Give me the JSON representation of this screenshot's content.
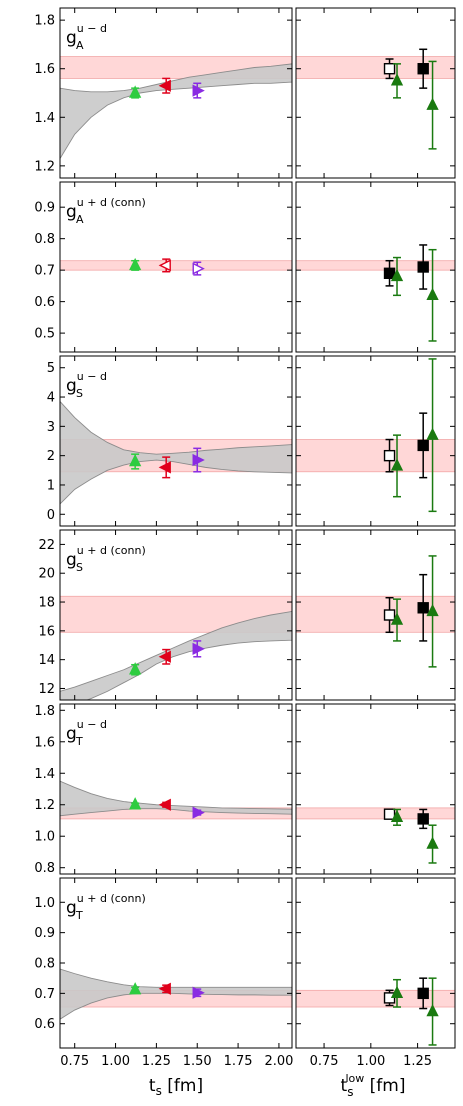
{
  "figure": {
    "left_xlabel": {
      "main": "t",
      "sub": "s",
      "unit": " [fm]"
    },
    "right_xlabel": {
      "main": "t",
      "sub": "s",
      "sup": "low",
      "unit": " [fm]"
    }
  },
  "chart_data": [
    {
      "type": "scatter",
      "label": {
        "main": "g",
        "sub": "A",
        "sup": "u − d"
      },
      "ylim": [
        1.15,
        1.85
      ],
      "yticks": [
        1.2,
        1.4,
        1.6,
        1.8
      ],
      "ytick_labels": [
        "1.2",
        "1.4",
        "1.6",
        "1.8"
      ],
      "band": [
        1.56,
        1.65
      ],
      "left": {
        "xlim": [
          0.66,
          2.08
        ],
        "xticks": [
          0.75,
          1.0,
          1.25,
          1.5,
          1.75,
          2.0
        ],
        "xtick_labels": [
          "0.75",
          "1.00",
          "1.25",
          "1.50",
          "1.75",
          "2.00"
        ],
        "fit_band": {
          "x": [
            0.66,
            0.75,
            0.85,
            0.95,
            1.05,
            1.15,
            1.25,
            1.35,
            1.45,
            1.55,
            1.65,
            1.75,
            1.85,
            1.95,
            2.08
          ],
          "upper": [
            1.52,
            1.51,
            1.505,
            1.505,
            1.51,
            1.52,
            1.535,
            1.55,
            1.565,
            1.575,
            1.585,
            1.595,
            1.605,
            1.61,
            1.62
          ],
          "lower": [
            1.23,
            1.33,
            1.4,
            1.45,
            1.48,
            1.5,
            1.51,
            1.515,
            1.52,
            1.525,
            1.53,
            1.535,
            1.54,
            1.54,
            1.545
          ]
        },
        "points": [
          {
            "x": 1.12,
            "y": 1.5,
            "err": 0.02,
            "marker": "triangle-up",
            "color": "#2ecc40",
            "filled": true
          },
          {
            "x": 1.31,
            "y": 1.53,
            "err": 0.03,
            "marker": "triangle-left",
            "color": "#e0001b",
            "filled": true
          },
          {
            "x": 1.5,
            "y": 1.51,
            "err": 0.03,
            "marker": "triangle-right",
            "color": "#8a2be2",
            "filled": true
          }
        ]
      },
      "right": {
        "xlim": [
          0.6,
          1.45
        ],
        "xticks": [
          0.75,
          1.0,
          1.25
        ],
        "xtick_labels": [
          "0.75",
          "1.00",
          "1.25"
        ],
        "points": [
          {
            "x": 1.1,
            "y": 1.6,
            "err": 0.04,
            "marker": "square",
            "color": "#000000",
            "filled": false
          },
          {
            "x": 1.14,
            "y": 1.55,
            "err": 0.07,
            "marker": "triangle-up",
            "color": "#1a7a10",
            "filled": true
          },
          {
            "x": 1.28,
            "y": 1.6,
            "err": 0.08,
            "marker": "square",
            "color": "#000000",
            "filled": true
          },
          {
            "x": 1.33,
            "y": 1.45,
            "err": 0.18,
            "marker": "triangle-up",
            "color": "#1a7a10",
            "filled": true
          }
        ]
      }
    },
    {
      "type": "scatter",
      "label": {
        "main": "g",
        "sub": "A",
        "sup": "u + d (conn)"
      },
      "ylim": [
        0.44,
        0.98
      ],
      "yticks": [
        0.5,
        0.6,
        0.7,
        0.8,
        0.9
      ],
      "ytick_labels": [
        "0.5",
        "0.6",
        "0.7",
        "0.8",
        "0.9"
      ],
      "band": [
        0.7,
        0.73
      ],
      "left": {
        "xlim": [
          0.66,
          2.08
        ],
        "xticks": [
          0.75,
          1.0,
          1.25,
          1.5,
          1.75,
          2.0
        ],
        "xtick_labels": [
          "0.75",
          "1.00",
          "1.25",
          "1.50",
          "1.75",
          "2.00"
        ],
        "fit_band": null,
        "points": [
          {
            "x": 1.12,
            "y": 0.715,
            "err": 0.015,
            "marker": "triangle-up",
            "color": "#2ecc40",
            "filled": true
          },
          {
            "x": 1.31,
            "y": 0.715,
            "err": 0.02,
            "marker": "triangle-left",
            "color": "#e0001b",
            "filled": false
          },
          {
            "x": 1.5,
            "y": 0.705,
            "err": 0.02,
            "marker": "triangle-right",
            "color": "#8a2be2",
            "filled": false
          }
        ]
      },
      "right": {
        "xlim": [
          0.6,
          1.45
        ],
        "xticks": [
          0.75,
          1.0,
          1.25
        ],
        "xtick_labels": [
          "0.75",
          "1.00",
          "1.25"
        ],
        "points": [
          {
            "x": 1.1,
            "y": 0.69,
            "err": 0.04,
            "marker": "square",
            "color": "#000000",
            "filled": true
          },
          {
            "x": 1.14,
            "y": 0.68,
            "err": 0.06,
            "marker": "triangle-up",
            "color": "#1a7a10",
            "filled": true
          },
          {
            "x": 1.28,
            "y": 0.71,
            "err": 0.07,
            "marker": "square",
            "color": "#000000",
            "filled": true
          },
          {
            "x": 1.33,
            "y": 0.62,
            "err": 0.145,
            "marker": "triangle-up",
            "color": "#1a7a10",
            "filled": true
          }
        ]
      }
    },
    {
      "type": "scatter",
      "label": {
        "main": "g",
        "sub": "S",
        "sup": "u − d"
      },
      "ylim": [
        -0.4,
        5.4
      ],
      "yticks": [
        0,
        1,
        2,
        3,
        4,
        5
      ],
      "ytick_labels": [
        "0",
        "1",
        "2",
        "3",
        "4",
        "5"
      ],
      "band": [
        1.45,
        2.55
      ],
      "left": {
        "xlim": [
          0.66,
          2.08
        ],
        "xticks": [
          0.75,
          1.0,
          1.25,
          1.5,
          1.75,
          2.0
        ],
        "xtick_labels": [
          "0.75",
          "1.00",
          "1.25",
          "1.50",
          "1.75",
          "2.00"
        ],
        "fit_band": {
          "x": [
            0.66,
            0.75,
            0.85,
            0.95,
            1.05,
            1.15,
            1.25,
            1.35,
            1.45,
            1.55,
            1.65,
            1.75,
            1.85,
            1.95,
            2.08
          ],
          "upper": [
            3.85,
            3.3,
            2.8,
            2.45,
            2.2,
            2.1,
            2.05,
            2.08,
            2.12,
            2.18,
            2.22,
            2.27,
            2.3,
            2.33,
            2.38
          ],
          "lower": [
            0.35,
            0.85,
            1.2,
            1.5,
            1.68,
            1.8,
            1.85,
            1.8,
            1.7,
            1.6,
            1.53,
            1.48,
            1.45,
            1.43,
            1.41
          ]
        },
        "points": [
          {
            "x": 1.12,
            "y": 1.8,
            "err": 0.25,
            "marker": "triangle-up",
            "color": "#2ecc40",
            "filled": true
          },
          {
            "x": 1.31,
            "y": 1.6,
            "err": 0.35,
            "marker": "triangle-left",
            "color": "#e0001b",
            "filled": true
          },
          {
            "x": 1.5,
            "y": 1.85,
            "err": 0.4,
            "marker": "triangle-right",
            "color": "#8a2be2",
            "filled": true
          }
        ]
      },
      "right": {
        "xlim": [
          0.6,
          1.45
        ],
        "xticks": [
          0.75,
          1.0,
          1.25
        ],
        "xtick_labels": [
          "0.75",
          "1.00",
          "1.25"
        ],
        "points": [
          {
            "x": 1.1,
            "y": 2.0,
            "err": 0.55,
            "marker": "square",
            "color": "#000000",
            "filled": false
          },
          {
            "x": 1.14,
            "y": 1.65,
            "err": 1.05,
            "marker": "triangle-up",
            "color": "#1a7a10",
            "filled": true
          },
          {
            "x": 1.28,
            "y": 2.35,
            "err": 1.1,
            "marker": "square",
            "color": "#000000",
            "filled": true
          },
          {
            "x": 1.33,
            "y": 2.7,
            "err": 2.6,
            "marker": "triangle-up",
            "color": "#1a7a10",
            "filled": true
          }
        ]
      }
    },
    {
      "type": "scatter",
      "label": {
        "main": "g",
        "sub": "S",
        "sup": "u + d (conn)"
      },
      "ylim": [
        11.2,
        23.0
      ],
      "yticks": [
        12,
        14,
        16,
        18,
        20,
        22
      ],
      "ytick_labels": [
        "12",
        "14",
        "16",
        "18",
        "20",
        "22"
      ],
      "band": [
        15.9,
        18.4
      ],
      "left": {
        "xlim": [
          0.66,
          2.08
        ],
        "xticks": [
          0.75,
          1.0,
          1.25,
          1.5,
          1.75,
          2.0
        ],
        "xtick_labels": [
          "0.75",
          "1.00",
          "1.25",
          "1.50",
          "1.75",
          "2.00"
        ],
        "fit_band": {
          "x": [
            0.66,
            0.75,
            0.85,
            0.95,
            1.05,
            1.15,
            1.25,
            1.35,
            1.45,
            1.55,
            1.65,
            1.75,
            1.85,
            1.95,
            2.08
          ],
          "upper": [
            11.8,
            12.1,
            12.5,
            12.9,
            13.3,
            13.8,
            14.3,
            14.8,
            15.3,
            15.75,
            16.2,
            16.55,
            16.85,
            17.1,
            17.35
          ],
          "lower": [
            10.6,
            10.9,
            11.3,
            11.8,
            12.4,
            13.0,
            13.7,
            14.2,
            14.55,
            14.8,
            15.0,
            15.15,
            15.25,
            15.3,
            15.35
          ]
        },
        "points": [
          {
            "x": 1.12,
            "y": 13.3,
            "err": 0.35,
            "marker": "triangle-up",
            "color": "#2ecc40",
            "filled": true
          },
          {
            "x": 1.31,
            "y": 14.2,
            "err": 0.5,
            "marker": "triangle-left",
            "color": "#e0001b",
            "filled": true
          },
          {
            "x": 1.5,
            "y": 14.75,
            "err": 0.55,
            "marker": "triangle-right",
            "color": "#8a2be2",
            "filled": true
          }
        ]
      },
      "right": {
        "xlim": [
          0.6,
          1.45
        ],
        "xticks": [
          0.75,
          1.0,
          1.25
        ],
        "xtick_labels": [
          "0.75",
          "1.00",
          "1.25"
        ],
        "points": [
          {
            "x": 1.1,
            "y": 17.1,
            "err": 1.2,
            "marker": "square",
            "color": "#000000",
            "filled": false
          },
          {
            "x": 1.14,
            "y": 16.75,
            "err": 1.45,
            "marker": "triangle-up",
            "color": "#1a7a10",
            "filled": true
          },
          {
            "x": 1.28,
            "y": 17.6,
            "err": 2.3,
            "marker": "square",
            "color": "#000000",
            "filled": true
          },
          {
            "x": 1.33,
            "y": 17.35,
            "err": 3.85,
            "marker": "triangle-up",
            "color": "#1a7a10",
            "filled": true
          }
        ]
      }
    },
    {
      "type": "scatter",
      "label": {
        "main": "g",
        "sub": "T",
        "sup": "u − d"
      },
      "ylim": [
        0.76,
        1.84
      ],
      "yticks": [
        0.8,
        1.0,
        1.2,
        1.4,
        1.6,
        1.8
      ],
      "ytick_labels": [
        "0.8",
        "1.0",
        "1.2",
        "1.4",
        "1.6",
        "1.8"
      ],
      "band": [
        1.11,
        1.18
      ],
      "left": {
        "xlim": [
          0.66,
          2.08
        ],
        "xticks": [
          0.75,
          1.0,
          1.25,
          1.5,
          1.75,
          2.0
        ],
        "xtick_labels": [
          "0.75",
          "1.00",
          "1.25",
          "1.50",
          "1.75",
          "2.00"
        ],
        "fit_band": {
          "x": [
            0.66,
            0.75,
            0.85,
            0.95,
            1.05,
            1.15,
            1.25,
            1.35,
            1.45,
            1.55,
            1.65,
            1.75,
            1.85,
            1.95,
            2.08
          ],
          "upper": [
            1.35,
            1.31,
            1.27,
            1.24,
            1.22,
            1.21,
            1.2,
            1.195,
            1.19,
            1.185,
            1.18,
            1.178,
            1.176,
            1.174,
            1.172
          ],
          "lower": [
            1.13,
            1.14,
            1.15,
            1.16,
            1.17,
            1.175,
            1.175,
            1.17,
            1.16,
            1.155,
            1.15,
            1.147,
            1.145,
            1.143,
            1.14
          ]
        },
        "points": [
          {
            "x": 1.12,
            "y": 1.2,
            "err": 0.01,
            "marker": "triangle-up",
            "color": "#2ecc40",
            "filled": true
          },
          {
            "x": 1.31,
            "y": 1.2,
            "err": 0.015,
            "marker": "triangle-left",
            "color": "#e0001b",
            "filled": true
          },
          {
            "x": 1.5,
            "y": 1.15,
            "err": 0.015,
            "marker": "triangle-right",
            "color": "#8a2be2",
            "filled": true
          }
        ]
      },
      "right": {
        "xlim": [
          0.6,
          1.45
        ],
        "xticks": [
          0.75,
          1.0,
          1.25
        ],
        "xtick_labels": [
          "0.75",
          "1.00",
          "1.25"
        ],
        "points": [
          {
            "x": 1.1,
            "y": 1.14,
            "err": 0.02,
            "marker": "square",
            "color": "#000000",
            "filled": false
          },
          {
            "x": 1.14,
            "y": 1.12,
            "err": 0.05,
            "marker": "triangle-up",
            "color": "#1a7a10",
            "filled": true
          },
          {
            "x": 1.28,
            "y": 1.11,
            "err": 0.06,
            "marker": "square",
            "color": "#000000",
            "filled": true
          },
          {
            "x": 1.33,
            "y": 0.95,
            "err": 0.12,
            "marker": "triangle-up",
            "color": "#1a7a10",
            "filled": true
          }
        ]
      }
    },
    {
      "type": "scatter",
      "label": {
        "main": "g",
        "sub": "T",
        "sup": "u + d (conn)"
      },
      "ylim": [
        0.52,
        1.08
      ],
      "yticks": [
        0.6,
        0.7,
        0.8,
        0.9,
        1.0
      ],
      "ytick_labels": [
        "0.6",
        "0.7",
        "0.8",
        "0.9",
        "1.0"
      ],
      "band": [
        0.655,
        0.71
      ],
      "left": {
        "xlim": [
          0.66,
          2.08
        ],
        "xticks": [
          0.75,
          1.0,
          1.25,
          1.5,
          1.75,
          2.0
        ],
        "xtick_labels": [
          "0.75",
          "1.00",
          "1.25",
          "1.50",
          "1.75",
          "2.00"
        ],
        "fit_band": {
          "x": [
            0.66,
            0.75,
            0.85,
            0.95,
            1.05,
            1.15,
            1.25,
            1.35,
            1.45,
            1.55,
            1.65,
            1.75,
            1.85,
            1.95,
            2.08
          ],
          "upper": [
            0.78,
            0.765,
            0.75,
            0.738,
            0.728,
            0.722,
            0.72,
            0.72,
            0.72,
            0.72,
            0.72,
            0.72,
            0.72,
            0.72,
            0.72
          ],
          "lower": [
            0.615,
            0.645,
            0.668,
            0.685,
            0.695,
            0.7,
            0.7,
            0.7,
            0.698,
            0.697,
            0.696,
            0.695,
            0.695,
            0.694,
            0.694
          ]
        },
        "points": [
          {
            "x": 1.12,
            "y": 0.712,
            "err": 0.008,
            "marker": "triangle-up",
            "color": "#2ecc40",
            "filled": true
          },
          {
            "x": 1.31,
            "y": 0.715,
            "err": 0.012,
            "marker": "triangle-left",
            "color": "#e0001b",
            "filled": true
          },
          {
            "x": 1.5,
            "y": 0.702,
            "err": 0.012,
            "marker": "triangle-right",
            "color": "#8a2be2",
            "filled": true
          }
        ]
      },
      "right": {
        "xlim": [
          0.6,
          1.45
        ],
        "xticks": [
          0.75,
          1.0,
          1.25
        ],
        "xtick_labels": [
          "0.75",
          "1.00",
          "1.25"
        ],
        "points": [
          {
            "x": 1.1,
            "y": 0.685,
            "err": 0.025,
            "marker": "square",
            "color": "#000000",
            "filled": false
          },
          {
            "x": 1.14,
            "y": 0.7,
            "err": 0.045,
            "marker": "triangle-up",
            "color": "#1a7a10",
            "filled": true
          },
          {
            "x": 1.28,
            "y": 0.7,
            "err": 0.05,
            "marker": "square",
            "color": "#000000",
            "filled": true
          },
          {
            "x": 1.33,
            "y": 0.64,
            "err": 0.11,
            "marker": "triangle-up",
            "color": "#1a7a10",
            "filled": true
          }
        ]
      }
    }
  ]
}
